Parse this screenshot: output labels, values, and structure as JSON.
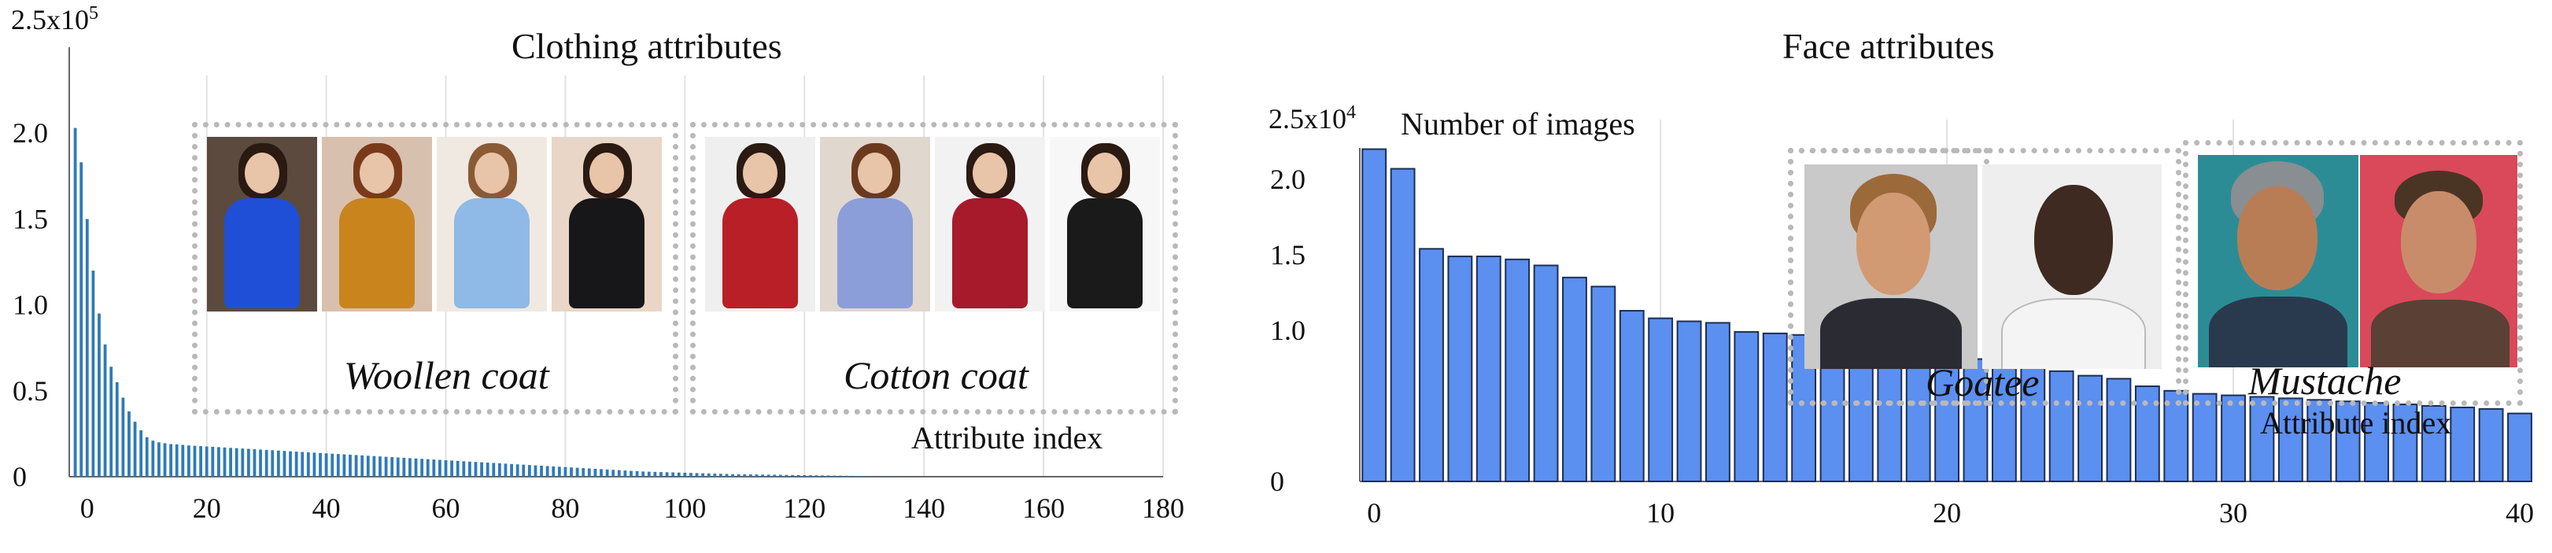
{
  "panels": [
    {
      "title": "Clothing attributes",
      "ylabel_top": "",
      "xlabel": "Attribute index",
      "ymax_label": "2.5x10",
      "ymax_exp": "5",
      "insets": [
        {
          "caption": "Woollen coat",
          "thumbs": [
            "blue-dress-model",
            "orange-coat-model",
            "light-blue-coat-model",
            "black-coat-model"
          ]
        },
        {
          "caption": "Cotton coat",
          "thumbs": [
            "red-puffer-model",
            "blue-puffer-model",
            "red-fur-puffer-model",
            "black-puffer-model"
          ]
        }
      ]
    },
    {
      "title": "Face attributes",
      "ylabel_top": "Number of images",
      "xlabel": "Attribute index",
      "ymax_label": "2.5x10",
      "ymax_exp": "4",
      "insets": [
        {
          "caption": "Goatee",
          "thumbs": [
            "man-goatee-1",
            "man-goatee-2"
          ]
        },
        {
          "caption": "Mustache",
          "thumbs": [
            "man-mustache-1",
            "man-mustache-2"
          ]
        }
      ]
    }
  ],
  "chart_data": [
    {
      "type": "bar",
      "title": "Clothing attributes",
      "xlabel": "Attribute index",
      "ylabel": "",
      "ylim": [
        0,
        250000
      ],
      "xlim": [
        -3,
        180
      ],
      "yticks": [
        "0",
        "0.5",
        "1.0",
        "1.5",
        "2.0"
      ],
      "ytick_values": [
        0,
        50000,
        100000,
        150000,
        200000
      ],
      "xticks": [
        0,
        20,
        40,
        60,
        80,
        100,
        120,
        140,
        160,
        180
      ],
      "bar_color": "#2f7ab9",
      "x": [
        -2,
        -1,
        0,
        1,
        2,
        3,
        4,
        5,
        6,
        7,
        8,
        9,
        10,
        11,
        12,
        13,
        14,
        15,
        16,
        17,
        18,
        19,
        20,
        21,
        22,
        23,
        24,
        25,
        26,
        27,
        28,
        29,
        30,
        31,
        32,
        33,
        34,
        35,
        36,
        37,
        38,
        39,
        40,
        41,
        42,
        43,
        44,
        45,
        46,
        47,
        48,
        49,
        50,
        51,
        52,
        53,
        54,
        55,
        56,
        57,
        58,
        59,
        60,
        61,
        62,
        63,
        64,
        65,
        66,
        67,
        68,
        69,
        70,
        71,
        72,
        73,
        74,
        75,
        76,
        77,
        78,
        79,
        80,
        81,
        82,
        83,
        84,
        85,
        86,
        87,
        88,
        89,
        90,
        91,
        92,
        93,
        94,
        95,
        96,
        97,
        98,
        99,
        100,
        101,
        102,
        103,
        104,
        105,
        106,
        107,
        108,
        109,
        110,
        111,
        112,
        113,
        114,
        115,
        116,
        117,
        118,
        119,
        120,
        121,
        122,
        123,
        124,
        125,
        126,
        127,
        128,
        129,
        130,
        131,
        132,
        133,
        134,
        135,
        136,
        137,
        138,
        139,
        140
      ],
      "values": [
        203000,
        183000,
        150000,
        120000,
        95000,
        77000,
        64000,
        55000,
        46000,
        38000,
        32000,
        27000,
        23000,
        21000,
        20000,
        19500,
        19000,
        18800,
        18500,
        18200,
        18000,
        17800,
        17600,
        17400,
        17200,
        17000,
        16800,
        16600,
        16400,
        16200,
        16000,
        15800,
        15600,
        15400,
        15200,
        15000,
        14800,
        14600,
        14400,
        14200,
        14000,
        13800,
        13600,
        13400,
        13200,
        13000,
        12800,
        12600,
        12400,
        12200,
        12000,
        11800,
        11600,
        11400,
        11200,
        11000,
        10800,
        10600,
        10400,
        10200,
        10000,
        9800,
        9600,
        9400,
        9200,
        9000,
        8800,
        8600,
        8400,
        8200,
        8000,
        7800,
        7600,
        7400,
        7200,
        7000,
        6800,
        6600,
        6400,
        6200,
        6000,
        5800,
        5600,
        5400,
        5200,
        5000,
        4800,
        4600,
        4400,
        4200,
        4000,
        3800,
        3600,
        3400,
        3200,
        3000,
        2900,
        2800,
        2700,
        2600,
        2500,
        2400,
        2300,
        2200,
        2100,
        2000,
        1900,
        1800,
        1700,
        1600,
        1500,
        1450,
        1400,
        1350,
        1300,
        1250,
        1200,
        1150,
        1100,
        1050,
        1000,
        950,
        900,
        850,
        800,
        750,
        700,
        650,
        600,
        550,
        500,
        450,
        400,
        350,
        300,
        250,
        200,
        150,
        100,
        80,
        60,
        40,
        20
      ]
    },
    {
      "type": "bar",
      "title": "Face attributes",
      "xlabel": "Attribute index",
      "ylabel": "Number of images",
      "ylim": [
        0,
        25000
      ],
      "xlim": [
        -0.5,
        40
      ],
      "yticks": [
        "0",
        "1.0",
        "1.5",
        "2.0"
      ],
      "ytick_values": [
        0,
        10000,
        15000,
        20000
      ],
      "xticks": [
        0,
        10,
        20,
        30,
        40
      ],
      "bar_color": "#5b8ff0",
      "x": [
        0,
        1,
        2,
        3,
        4,
        5,
        6,
        7,
        8,
        9,
        10,
        11,
        12,
        13,
        14,
        15,
        16,
        17,
        18,
        19,
        20,
        21,
        22,
        23,
        24,
        25,
        26,
        27,
        28,
        29,
        30,
        31,
        32,
        33,
        34,
        35,
        36,
        37,
        38,
        39,
        40
      ],
      "values": [
        22000,
        20700,
        15400,
        14900,
        14900,
        14700,
        14300,
        13500,
        12900,
        11300,
        10800,
        10600,
        10500,
        9900,
        9800,
        9700,
        9300,
        9200,
        9100,
        8800,
        8200,
        8100,
        8000,
        7600,
        7300,
        7000,
        6800,
        6300,
        6000,
        5800,
        5700,
        5600,
        5500,
        5400,
        5300,
        5200,
        5100,
        5000,
        4900,
        4800,
        4500
      ]
    }
  ]
}
